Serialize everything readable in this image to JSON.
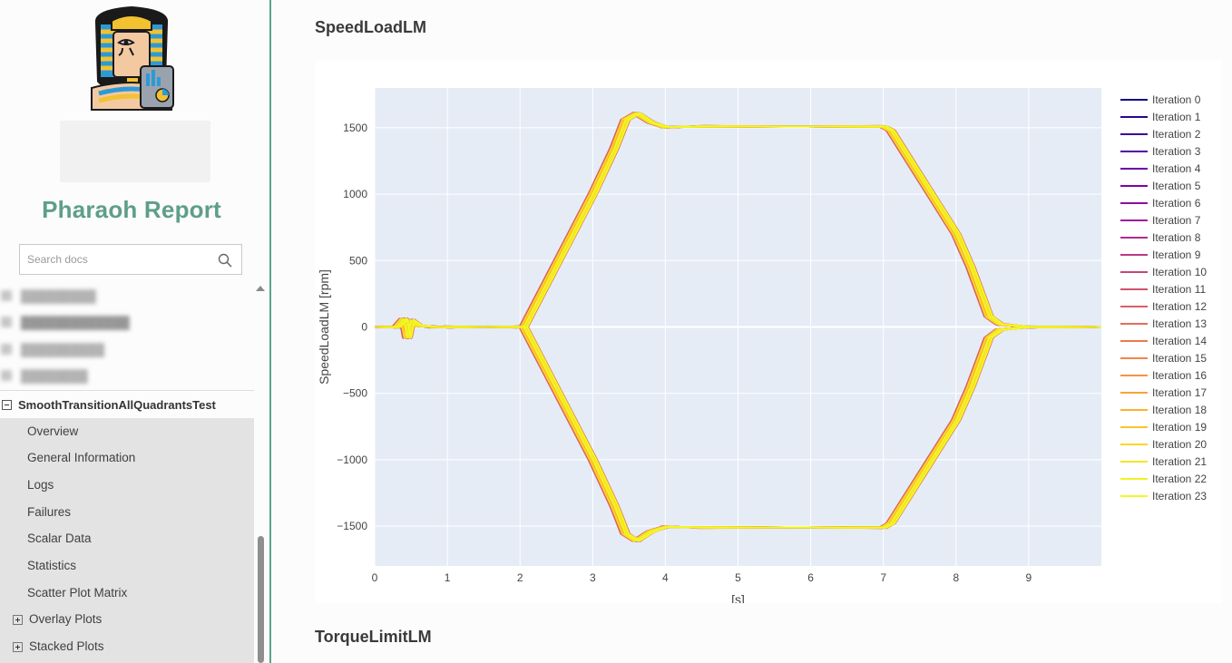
{
  "sidebar": {
    "project_title": "Pharaoh Report",
    "search": {
      "placeholder": "Search docs"
    },
    "active_test": "SmoothTransitionAllQuadrantsTest",
    "subnav": [
      {
        "label": "Overview"
      },
      {
        "label": "General Information"
      },
      {
        "label": "Logs"
      },
      {
        "label": "Failures"
      },
      {
        "label": "Scalar Data"
      },
      {
        "label": "Statistics"
      },
      {
        "label": "Scatter Plot Matrix"
      },
      {
        "label": "Overlay Plots"
      },
      {
        "label": "Stacked Plots"
      }
    ]
  },
  "main": {
    "sections": [
      {
        "title": "SpeedLoadLM"
      },
      {
        "title": "TorqueLimitLM"
      }
    ]
  },
  "colors": {
    "accent": "#5aa68a",
    "title": "#5e9e8a",
    "plot_bg": "#e5ecf6",
    "grid": "#ffffff",
    "subnav_bg": "#e3e3e3"
  },
  "chart_data": {
    "type": "line",
    "title": "",
    "xlabel": "[s]",
    "ylabel": "SpeedLoadLM [rpm]",
    "xlim": [
      0,
      10
    ],
    "ylim": [
      -1800,
      1800
    ],
    "xticks": [
      0,
      1,
      2,
      3,
      4,
      5,
      6,
      7,
      8,
      9
    ],
    "yticks": [
      -1500,
      -1000,
      -500,
      0,
      500,
      1000,
      1500
    ],
    "xtick_labels": [
      "0",
      "1",
      "2",
      "3",
      "4",
      "5",
      "6",
      "7",
      "8",
      "9"
    ],
    "ytick_labels": [
      "−1500",
      "−1000",
      "−500",
      "0",
      "500",
      "1000",
      "1500"
    ],
    "grid": true,
    "legend_position": "right",
    "profile_positive": {
      "x": [
        0,
        0.3,
        0.4,
        0.45,
        0.5,
        0.6,
        0.8,
        1.0,
        2.0,
        2.05,
        3.0,
        3.3,
        3.45,
        3.6,
        3.8,
        4.0,
        4.5,
        7.0,
        7.1,
        8.0,
        8.2,
        8.45,
        8.6,
        9.0,
        10.0
      ],
      "y": [
        0,
        0,
        60,
        -80,
        50,
        10,
        0,
        0,
        0,
        0,
        1000,
        1350,
        1560,
        1610,
        1540,
        1505,
        1510,
        1510,
        1480,
        700,
        450,
        80,
        20,
        0,
        0
      ]
    },
    "profile_negative": {
      "x": [
        0,
        0.3,
        0.4,
        0.45,
        0.5,
        0.6,
        0.8,
        1.0,
        2.0,
        2.05,
        3.0,
        3.3,
        3.45,
        3.6,
        3.8,
        4.0,
        4.5,
        7.0,
        7.1,
        8.0,
        8.2,
        8.45,
        8.6,
        9.0,
        10.0
      ],
      "y": [
        0,
        0,
        60,
        -80,
        50,
        10,
        0,
        0,
        0,
        0,
        -1000,
        -1350,
        -1560,
        -1610,
        -1540,
        -1505,
        -1510,
        -1510,
        -1480,
        -700,
        -450,
        -80,
        -20,
        0,
        0
      ]
    },
    "series": [
      {
        "name": "Iteration 0",
        "color": "#0d0887",
        "dt": 0.0
      },
      {
        "name": "Iteration 1",
        "color": "#270592",
        "dt": 0.02
      },
      {
        "name": "Iteration 2",
        "color": "#3a049a",
        "dt": -0.02
      },
      {
        "name": "Iteration 3",
        "color": "#5402a3",
        "dt": 0.04
      },
      {
        "name": "Iteration 4",
        "color": "#6a00a8",
        "dt": -0.03
      },
      {
        "name": "Iteration 5",
        "color": "#7e03a8",
        "dt": 0.01
      },
      {
        "name": "Iteration 6",
        "color": "#8f0da4",
        "dt": -0.01
      },
      {
        "name": "Iteration 7",
        "color": "#a11b9b",
        "dt": 0.03
      },
      {
        "name": "Iteration 8",
        "color": "#b12a90",
        "dt": -0.04
      },
      {
        "name": "Iteration 9",
        "color": "#bd3786",
        "dt": 0.05
      },
      {
        "name": "Iteration 10",
        "color": "#c8437b",
        "dt": -0.05
      },
      {
        "name": "Iteration 11",
        "color": "#d35171",
        "dt": 0.02
      },
      {
        "name": "Iteration 12",
        "color": "#dc5e66",
        "dt": -0.06
      },
      {
        "name": "Iteration 13",
        "color": "#e56b5d",
        "dt": 0.06
      },
      {
        "name": "Iteration 14",
        "color": "#ec7853",
        "dt": -0.02
      },
      {
        "name": "Iteration 15",
        "color": "#f2844b",
        "dt": 0.03
      },
      {
        "name": "Iteration 16",
        "color": "#f79342",
        "dt": -0.03
      },
      {
        "name": "Iteration 17",
        "color": "#fba238",
        "dt": 0.01
      },
      {
        "name": "Iteration 18",
        "color": "#fdb130",
        "dt": -0.01
      },
      {
        "name": "Iteration 19",
        "color": "#fdc328",
        "dt": 0.04
      },
      {
        "name": "Iteration 20",
        "color": "#fbd524",
        "dt": -0.04
      },
      {
        "name": "Iteration 21",
        "color": "#f7e425",
        "dt": 0.02
      },
      {
        "name": "Iteration 22",
        "color": "#f2f226",
        "dt": 0.0
      },
      {
        "name": "Iteration 23",
        "color": "#f0f921",
        "dt": 0.05
      }
    ]
  }
}
